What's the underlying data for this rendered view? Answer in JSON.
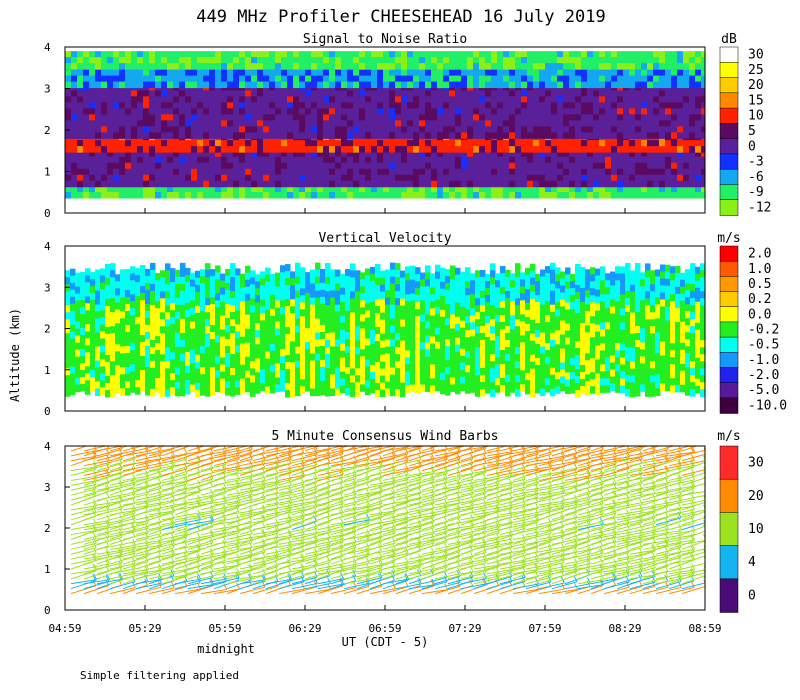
{
  "title": "449 MHz Profiler CHEESEHEAD 16 July 2019",
  "ylabel": "Altitude (km)",
  "xlabel": "UT  (CDT - 5)",
  "midnight_label": "midnight",
  "footnote": "Simple filtering applied",
  "x_ticks": [
    "04:59",
    "05:29",
    "05:59",
    "06:29",
    "06:59",
    "07:29",
    "07:59",
    "08:29",
    "08:59"
  ],
  "y_ticks": [
    "0",
    "1",
    "2",
    "3",
    "4"
  ],
  "colors": {
    "background": "#ffffff",
    "axis": "#000000"
  },
  "chart_data": [
    {
      "type": "heatmap",
      "title": "Signal to Noise Ratio",
      "units": "dB",
      "xlim": [
        "04:59",
        "08:59"
      ],
      "ylim": [
        0,
        4
      ],
      "colorbar": [
        {
          "label": "30",
          "color": "#ffffff"
        },
        {
          "label": "25",
          "color": "#ffff00"
        },
        {
          "label": "20",
          "color": "#ffcc00"
        },
        {
          "label": "15",
          "color": "#ff8800"
        },
        {
          "label": "10",
          "color": "#ff2200"
        },
        {
          "label": "5",
          "color": "#5a0a60"
        },
        {
          "label": "0",
          "color": "#5a209a"
        },
        {
          "label": "-3",
          "color": "#1230ff"
        },
        {
          "label": "-6",
          "color": "#13a8f0"
        },
        {
          "label": "-9",
          "color": "#22ee66"
        },
        {
          "label": "-12",
          "color": "#8af018"
        }
      ],
      "layers": [
        {
          "alt_km": [
            0.45,
            0.65
          ],
          "level": "-9"
        },
        {
          "alt_km": [
            0.65,
            1.5
          ],
          "level": "0"
        },
        {
          "alt_km": [
            1.5,
            1.9
          ],
          "level": "10"
        },
        {
          "alt_km": [
            1.9,
            3.1
          ],
          "level": "0"
        },
        {
          "alt_km": [
            3.1,
            3.6
          ],
          "level": "-6"
        },
        {
          "alt_km": [
            3.6,
            3.9
          ],
          "level": "-9"
        }
      ]
    },
    {
      "type": "heatmap",
      "title": "Vertical Velocity",
      "units": "m/s",
      "xlim": [
        "04:59",
        "08:59"
      ],
      "ylim": [
        0,
        4
      ],
      "colorbar": [
        {
          "label": "2.0",
          "color": "#ff0000"
        },
        {
          "label": "1.0",
          "color": "#ff5a00"
        },
        {
          "label": "0.5",
          "color": "#ff9900"
        },
        {
          "label": "0.2",
          "color": "#ffcc00"
        },
        {
          "label": "0.0",
          "color": "#ffff00"
        },
        {
          "label": "-0.2",
          "color": "#22ee22"
        },
        {
          "label": "-0.5",
          "color": "#00ffee"
        },
        {
          "label": "-1.0",
          "color": "#1599ff"
        },
        {
          "label": "-2.0",
          "color": "#2222ee"
        },
        {
          "label": "-5.0",
          "color": "#5a189a"
        },
        {
          "label": "-10.0",
          "color": "#400040"
        }
      ],
      "data_range_km": [
        0.5,
        3.6
      ],
      "dominant_levels": [
        "-0.2",
        "-0.5",
        "0.0"
      ]
    },
    {
      "type": "wind_barbs",
      "title": "5 Minute Consensus Wind Barbs",
      "units": "m/s",
      "xlim": [
        "04:59",
        "08:59"
      ],
      "ylim": [
        0,
        4
      ],
      "colorbar": [
        {
          "label": "30",
          "color": "#ff2a2a"
        },
        {
          "label": "20",
          "color": "#ff8c00"
        },
        {
          "label": "10",
          "color": "#9be31e"
        },
        {
          "label": "4",
          "color": "#14b4f0"
        },
        {
          "label": "0",
          "color": "#4a0a78"
        }
      ],
      "speed_profile": [
        {
          "alt_km": 0.5,
          "speed": 5
        },
        {
          "alt_km": 1.0,
          "speed": 12
        },
        {
          "alt_km": 1.5,
          "speed": 11
        },
        {
          "alt_km": 2.0,
          "speed": 8
        },
        {
          "alt_km": 2.5,
          "speed": 9
        },
        {
          "alt_km": 3.0,
          "speed": 13
        },
        {
          "alt_km": 3.5,
          "speed": 16
        },
        {
          "alt_km": 4.0,
          "speed": 18
        }
      ]
    }
  ]
}
